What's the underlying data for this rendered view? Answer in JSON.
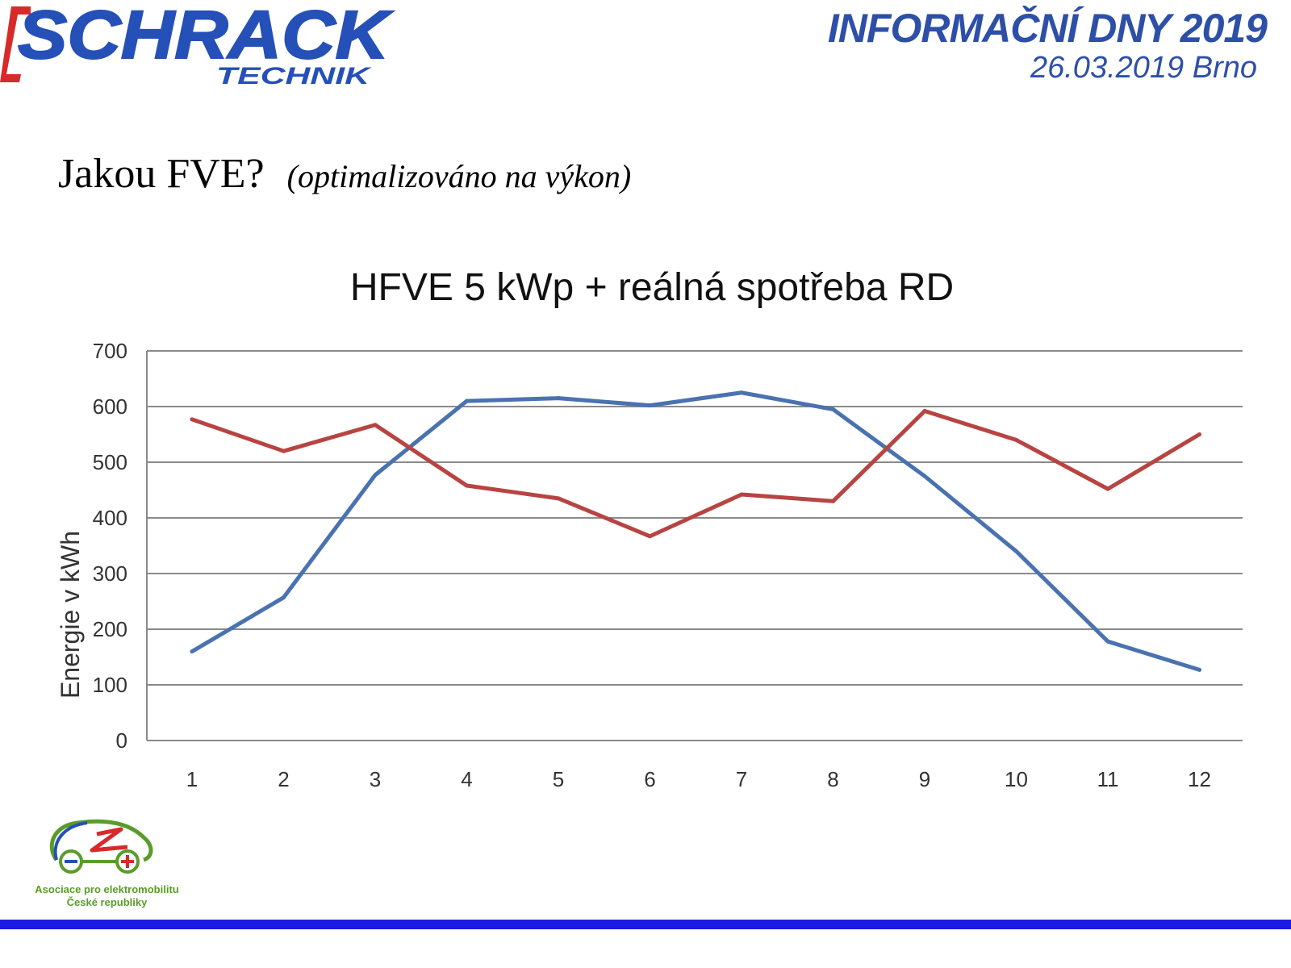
{
  "header": {
    "brand_main": "SCHRACK",
    "brand_sub": "TECHNIK",
    "event_title": "INFORMAČNÍ DNY 2019",
    "event_date": "26.03.2019 Brno",
    "brand_colors": {
      "blue": "#2450b8",
      "red": "#d82a2a"
    }
  },
  "slide": {
    "title": "Jakou FVE?",
    "subtitle": "(optimalizováno na výkon)"
  },
  "chart_data": {
    "type": "line",
    "title": "HFVE 5 kWp + reálná spotřeba RD",
    "xlabel": "",
    "ylabel": "Energie v kWh",
    "categories": [
      "1",
      "2",
      "3",
      "4",
      "5",
      "6",
      "7",
      "8",
      "9",
      "10",
      "11",
      "12"
    ],
    "ylim": [
      0,
      700
    ],
    "yticks": [
      "0",
      "100",
      "200",
      "300",
      "400",
      "500",
      "600",
      "700"
    ],
    "grid": true,
    "legend": "none",
    "series": [
      {
        "color": "#4a72b0",
        "values": [
          160,
          257,
          477,
          610,
          615,
          602,
          625,
          595,
          475,
          340,
          178,
          127
        ]
      },
      {
        "color": "#b84442",
        "values": [
          577,
          520,
          567,
          458,
          435,
          367,
          442,
          430,
          592,
          540,
          452,
          550
        ]
      }
    ]
  },
  "footer": {
    "association_line1": "Asociace pro elektromobilitu",
    "association_line2": "České republiky",
    "bar_color": "#1b1be0"
  }
}
